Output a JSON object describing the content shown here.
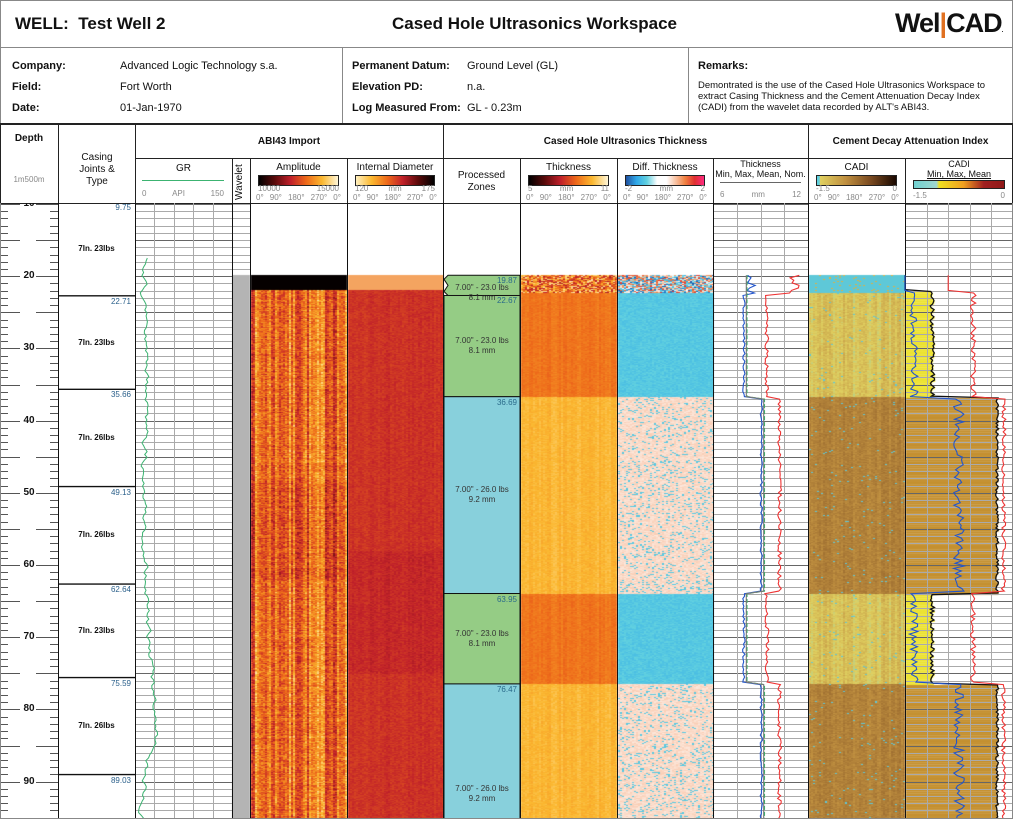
{
  "header": {
    "well_label": "WELL:",
    "well_name": "Test Well 2",
    "title": "Cased Hole Ultrasonics Workspace",
    "logo": "WellCAD"
  },
  "info": {
    "company_label": "Company:",
    "company": "Advanced Logic Technology s.a.",
    "field_label": "Field:",
    "field": "Fort Worth",
    "date_label": "Date:",
    "date": "01-Jan-1970",
    "datum_label": "Permanent Datum:",
    "datum": "Ground Level (GL)",
    "elev_label": "Elevation PD:",
    "elev": "n.a.",
    "lmf_label": "Log Measured From:",
    "lmf": "GL - 0.23m",
    "remarks_label": "Remarks:",
    "remarks": "Demontrated is the use of the Cased Hole Ultrasonics Workspace to extract Casing Thickness and the Cement Attenuation Decay Index (CADI) from the wavelet data recorded by ALT's ABI43."
  },
  "tracks": {
    "depth": {
      "title": "Depth",
      "scale": "1m500m"
    },
    "casing": {
      "title": "Casing Joints & Type"
    },
    "abi_group": "ABI43 Import",
    "thick_group": "Cased Hole Ultrasonics Thickness",
    "cadi_group": "Cement Decay Attenuation Index",
    "gr": {
      "title": "GR",
      "min": "0",
      "unit": "API",
      "max": "150",
      "color": "#3cb371"
    },
    "wavelet": {
      "title": "Wavelet"
    },
    "amplitude": {
      "title": "Amplitude",
      "min": "10000",
      "max": "15000"
    },
    "internal_diameter": {
      "title": "Internal Diameter",
      "min": "120",
      "unit": "mm",
      "max": "175"
    },
    "zones": {
      "title": "Processed Zones"
    },
    "thickness": {
      "title": "Thickness",
      "min": "5",
      "unit": "mm",
      "max": "11"
    },
    "diff_thickness": {
      "title": "Diff. Thickness",
      "min": "-2",
      "unit": "mm",
      "max": "2"
    },
    "thickness_curves": {
      "title": "Thickness",
      "subtitle": "Min, Max, Mean, Nom.",
      "min": "6",
      "unit": "mm",
      "max": "12"
    },
    "cadi": {
      "title": "CADI",
      "min": "-1.5",
      "max": "0"
    },
    "cadi_curves": {
      "title": "CADI",
      "subtitle": "Min, Max, Mean",
      "min": "-1.5",
      "max": "0"
    }
  },
  "angles": [
    "0°",
    "90°",
    "180°",
    "270°",
    "0°"
  ],
  "depth_labels": [
    "10",
    "20",
    "30",
    "40",
    "50",
    "60",
    "70",
    "80",
    "90"
  ],
  "casing_joints": [
    {
      "top": 9.75,
      "label": "9.75",
      "type": "7In. 23lbs"
    },
    {
      "top": 22.71,
      "label": "22.71",
      "type": "7In. 23lbs"
    },
    {
      "top": 35.66,
      "label": "35.66",
      "type": "7In. 26lbs"
    },
    {
      "top": 49.13,
      "label": "49.13",
      "type": "7In. 26lbs"
    },
    {
      "top": 62.64,
      "label": "62.64",
      "type": "7In. 23lbs"
    },
    {
      "top": 75.59,
      "label": "75.59",
      "type": "7In. 26lbs"
    },
    {
      "top": 89.03,
      "label": "89.03",
      "type": ""
    }
  ],
  "zones": [
    {
      "top": 19.87,
      "bottom": 22.67,
      "label": "19.87",
      "desc": "7.00\" - 23.0 lbs",
      "thick": "8.1 mm",
      "grade": "23"
    },
    {
      "top": 22.67,
      "bottom": 36.69,
      "label": "22.67",
      "desc": "7.00\" - 23.0 lbs",
      "thick": "8.1 mm",
      "grade": "23"
    },
    {
      "top": 36.69,
      "bottom": 63.95,
      "label": "36.69",
      "desc": "7.00\" - 26.0 lbs",
      "thick": "9.2 mm",
      "grade": "26"
    },
    {
      "top": 63.95,
      "bottom": 76.47,
      "label": "63.95",
      "desc": "7.00\" - 23.0 lbs",
      "thick": "8.1 mm",
      "grade": "23"
    },
    {
      "top": 76.47,
      "bottom": 96,
      "label": "76.47",
      "desc": "7.00\" - 26.0 lbs",
      "thick": "9.2 mm",
      "grade": "26"
    }
  ],
  "colors": {
    "zone_23": "#95cc85",
    "zone_26": "#88d0dc",
    "min_curve": "#2255cc",
    "max_curve": "#ee3333",
    "mean_curve": "#33bb66",
    "cadi_fill_23": "#ece232",
    "cadi_fill_26": "#c49030"
  }
}
